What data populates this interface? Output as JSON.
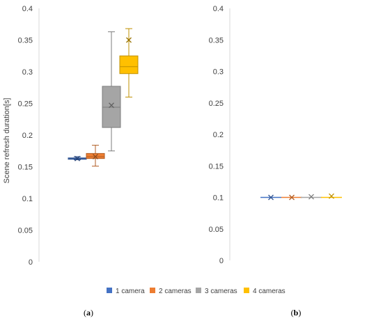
{
  "chart_data": [
    {
      "type": "box",
      "panel_label": "a",
      "ylabel": "Scene refresh duration[s]",
      "ylim": [
        0,
        0.4
      ],
      "yticks": [
        "0",
        "0.05",
        "0.1",
        "0.15",
        "0.2",
        "0.25",
        "0.3",
        "0.35",
        "0.4"
      ],
      "grid": false,
      "series": [
        {
          "name": "1 camera",
          "color": "#4472C4",
          "min": 0.161,
          "q1": 0.162,
          "median": 0.163,
          "q3": 0.164,
          "max": 0.166,
          "mean": 0.163
        },
        {
          "name": "2 cameras",
          "color": "#ED7D31",
          "min": 0.151,
          "q1": 0.163,
          "median": 0.166,
          "q3": 0.171,
          "max": 0.184,
          "mean": 0.166
        },
        {
          "name": "3 cameras",
          "color": "#A5A5A5",
          "min": 0.175,
          "q1": 0.212,
          "median": 0.244,
          "q3": 0.277,
          "max": 0.363,
          "mean": 0.247
        },
        {
          "name": "4 cameras",
          "color": "#FFC000",
          "min": 0.26,
          "q1": 0.297,
          "median": 0.308,
          "q3": 0.325,
          "max": 0.368,
          "mean": 0.35
        }
      ]
    },
    {
      "type": "box",
      "panel_label": "b",
      "ylabel": "",
      "ylim": [
        0,
        0.4
      ],
      "yticks": [
        "0",
        "0.05",
        "0.1",
        "0.15",
        "0.2",
        "0.25",
        "0.3",
        "0.35",
        "0.4"
      ],
      "grid": false,
      "series": [
        {
          "name": "1 camera",
          "color": "#4472C4",
          "min": 0.1,
          "q1": 0.1,
          "median": 0.1,
          "q3": 0.1,
          "max": 0.1,
          "mean": 0.1
        },
        {
          "name": "2 cameras",
          "color": "#ED7D31",
          "min": 0.1,
          "q1": 0.1,
          "median": 0.1,
          "q3": 0.1,
          "max": 0.1,
          "mean": 0.1
        },
        {
          "name": "3 cameras",
          "color": "#A5A5A5",
          "min": 0.1,
          "q1": 0.1,
          "median": 0.1,
          "q3": 0.1,
          "max": 0.1,
          "mean": 0.101
        },
        {
          "name": "4 cameras",
          "color": "#FFC000",
          "min": 0.1,
          "q1": 0.1,
          "median": 0.1,
          "q3": 0.1,
          "max": 0.1,
          "mean": 0.102
        }
      ]
    }
  ],
  "legend": {
    "placement": "bottom",
    "items": [
      {
        "label": "1 camera",
        "color": "#4472C4"
      },
      {
        "label": "2 cameras",
        "color": "#ED7D31"
      },
      {
        "label": "3 cameras",
        "color": "#A5A5A5"
      },
      {
        "label": "4 cameras",
        "color": "#FFC000"
      }
    ]
  }
}
